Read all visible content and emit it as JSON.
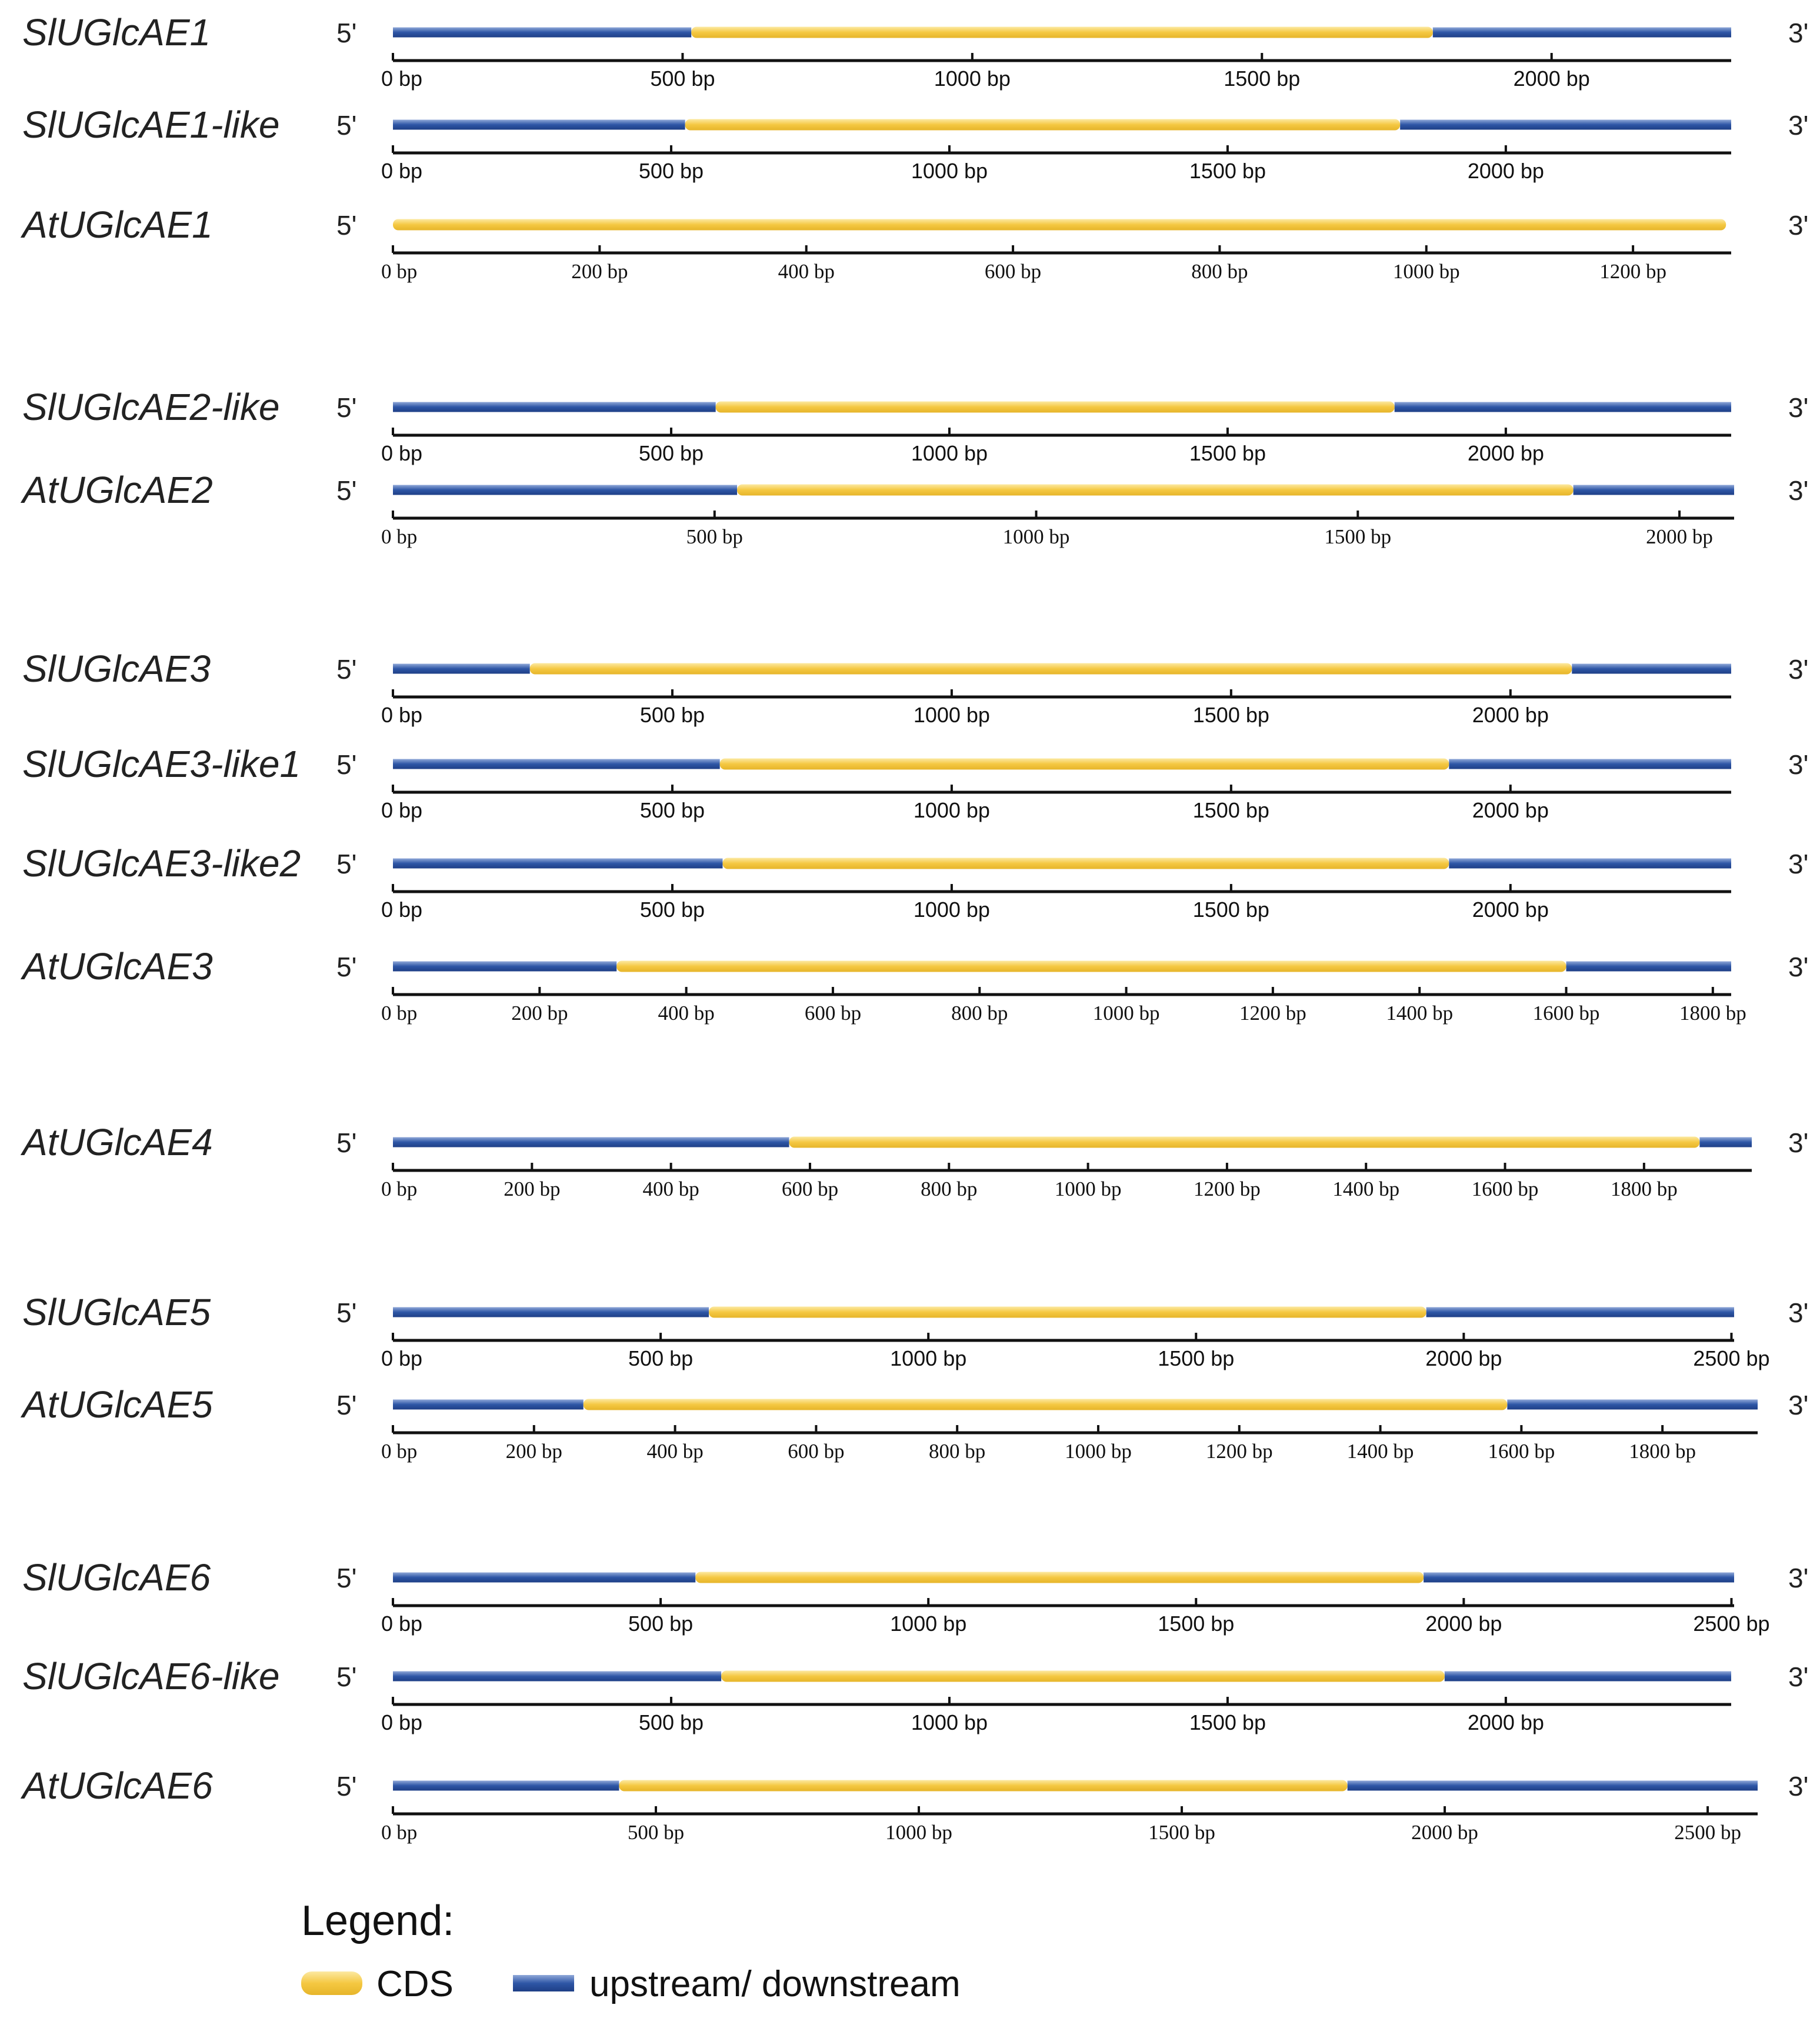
{
  "colors": {
    "cds": "#F5C842",
    "cds_light": "#FCE9A2",
    "utr": "#2E56A6",
    "utr_light": "#8FA8D8",
    "axis": "#111111"
  },
  "diagram": {
    "bp_unit": "bp",
    "prime5": "5'",
    "prime3": "3'",
    "genes": [
      {
        "name": "SlUGlcAE1",
        "font": "sans",
        "gene_start": 0,
        "cds_start": 515,
        "cds_end": 1795,
        "gene_end": 2310,
        "axis_max": 2310,
        "ticks": [
          0,
          500,
          1000,
          1500,
          2000
        ]
      },
      {
        "name": "SlUGlcAE1-like",
        "font": "sans",
        "gene_start": 0,
        "cds_start": 525,
        "cds_end": 1810,
        "gene_end": 2405,
        "axis_max": 2405,
        "ticks": [
          0,
          500,
          1000,
          1500,
          2000
        ]
      },
      {
        "name": "AtUGlcAE1",
        "font": "serif",
        "gene_start": 0,
        "cds_start": 0,
        "cds_end": 1290,
        "gene_end": 1290,
        "axis_max": 1295,
        "ticks": [
          0,
          200,
          400,
          600,
          800,
          1000,
          1200
        ]
      },
      {
        "name": "SlUGlcAE2-like",
        "font": "sans",
        "gene_start": 0,
        "cds_start": 580,
        "cds_end": 1800,
        "gene_end": 2405,
        "axis_max": 2405,
        "ticks": [
          0,
          500,
          1000,
          1500,
          2000
        ]
      },
      {
        "name": "AtUGlcAE2",
        "font": "serif",
        "gene_start": 0,
        "cds_start": 535,
        "cds_end": 1835,
        "gene_end": 2085,
        "axis_max": 2085,
        "ticks": [
          0,
          500,
          1000,
          1500,
          2000
        ]
      },
      {
        "name": "SlUGlcAE3",
        "font": "sans",
        "gene_start": 0,
        "cds_start": 245,
        "cds_end": 2110,
        "gene_end": 2395,
        "axis_max": 2395,
        "ticks": [
          0,
          500,
          1000,
          1500,
          2000
        ]
      },
      {
        "name": "SlUGlcAE3-like1",
        "font": "sans",
        "gene_start": 0,
        "cds_start": 585,
        "cds_end": 1890,
        "gene_end": 2395,
        "axis_max": 2395,
        "ticks": [
          0,
          500,
          1000,
          1500,
          2000
        ]
      },
      {
        "name": "SlUGlcAE3-like2",
        "font": "sans",
        "gene_start": 0,
        "cds_start": 590,
        "cds_end": 1890,
        "gene_end": 2395,
        "axis_max": 2395,
        "ticks": [
          0,
          500,
          1000,
          1500,
          2000
        ]
      },
      {
        "name": "AtUGlcAE3",
        "font": "serif",
        "gene_start": 0,
        "cds_start": 305,
        "cds_end": 1600,
        "gene_end": 1825,
        "axis_max": 1825,
        "ticks": [
          0,
          200,
          400,
          600,
          800,
          1000,
          1200,
          1400,
          1600,
          1800
        ]
      },
      {
        "name": "AtUGlcAE4",
        "font": "serif",
        "gene_start": 0,
        "cds_start": 570,
        "cds_end": 1880,
        "gene_end": 1955,
        "axis_max": 1955,
        "ticks": [
          0,
          200,
          400,
          600,
          800,
          1000,
          1200,
          1400,
          1600,
          1800
        ]
      },
      {
        "name": "SlUGlcAE5",
        "font": "sans",
        "gene_start": 0,
        "cds_start": 590,
        "cds_end": 1930,
        "gene_end": 2505,
        "axis_max": 2505,
        "ticks": [
          0,
          500,
          1000,
          1500,
          2000,
          2500
        ]
      },
      {
        "name": "AtUGlcAE5",
        "font": "serif",
        "gene_start": 0,
        "cds_start": 270,
        "cds_end": 1580,
        "gene_end": 1935,
        "axis_max": 1935,
        "ticks": [
          0,
          200,
          400,
          600,
          800,
          1000,
          1200,
          1400,
          1600,
          1800
        ]
      },
      {
        "name": "SlUGlcAE6",
        "font": "sans",
        "gene_start": 0,
        "cds_start": 565,
        "cds_end": 1925,
        "gene_end": 2505,
        "axis_max": 2505,
        "ticks": [
          0,
          500,
          1000,
          1500,
          2000,
          2500
        ]
      },
      {
        "name": "SlUGlcAE6-like",
        "font": "sans",
        "gene_start": 0,
        "cds_start": 590,
        "cds_end": 1890,
        "gene_end": 2405,
        "axis_max": 2405,
        "ticks": [
          0,
          500,
          1000,
          1500,
          2000
        ]
      },
      {
        "name": "AtUGlcAE6",
        "font": "serif",
        "gene_start": 0,
        "cds_start": 430,
        "cds_end": 1815,
        "gene_end": 2595,
        "axis_max": 2595,
        "ticks": [
          0,
          500,
          1000,
          1500,
          2000,
          2500
        ]
      }
    ]
  },
  "legend": {
    "title": "Legend:",
    "items": [
      {
        "label": "CDS",
        "kind": "cds"
      },
      {
        "label": "upstream/ downstream",
        "kind": "utr"
      }
    ]
  }
}
